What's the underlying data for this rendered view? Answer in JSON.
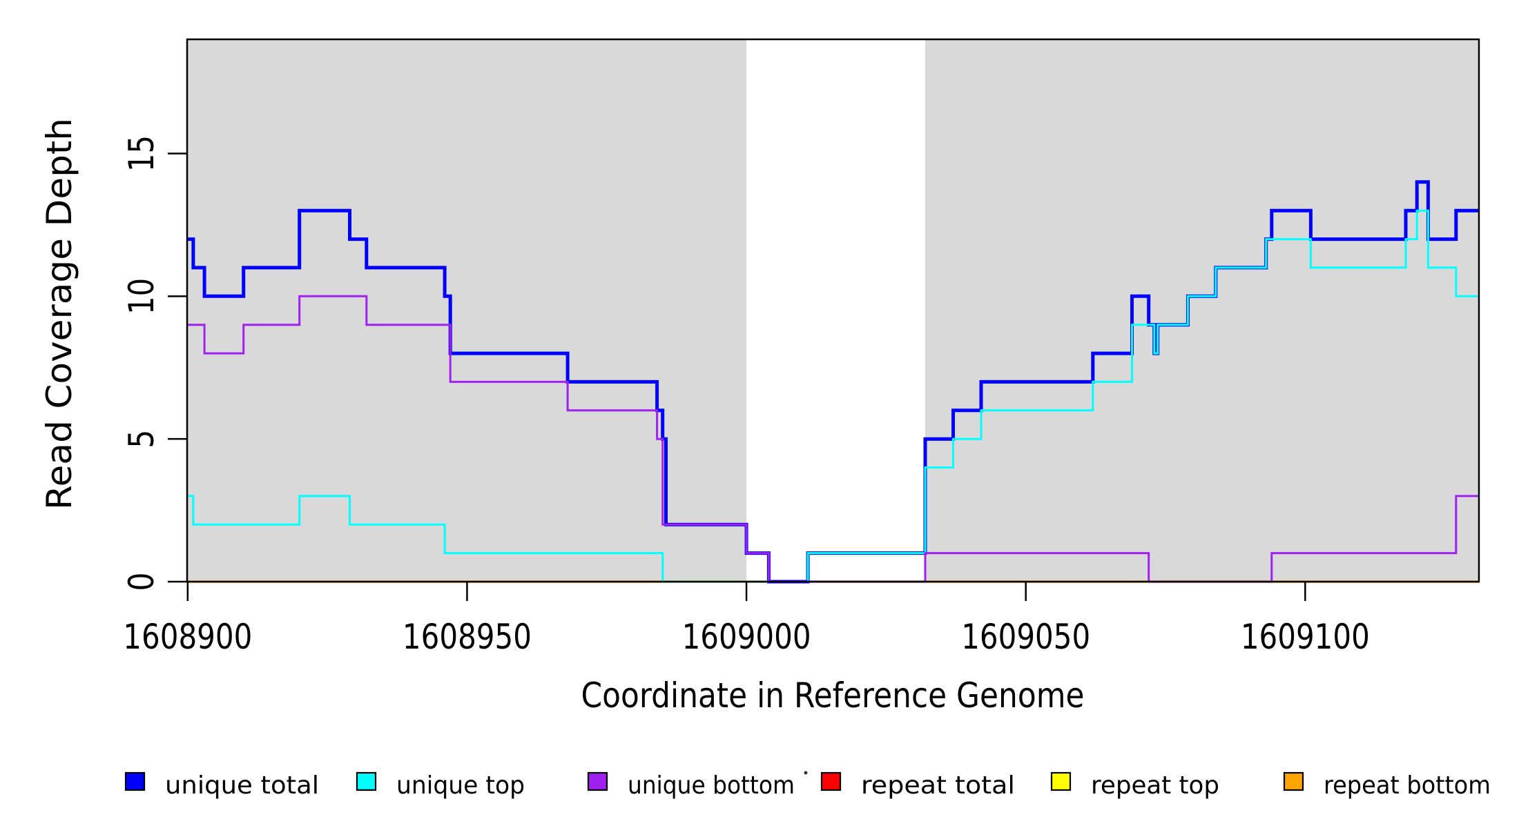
{
  "chart_data": {
    "type": "line",
    "subtype": "step-coverage-plot",
    "title": "",
    "xlabel": "Coordinate in Reference Genome",
    "ylabel": "Read Coverage Depth",
    "xlim": [
      1608899.9,
      1609131.1
    ],
    "ylim": [
      0,
      19
    ],
    "grid": false,
    "xticks": [
      1608900,
      1608950,
      1609000,
      1609050,
      1609100
    ],
    "xtick_labels": [
      "1608900",
      "1608950",
      "1609000",
      "1609050",
      "1609100"
    ],
    "yticks": [
      0,
      5,
      10,
      15
    ],
    "ytick_labels": [
      "0",
      "5",
      "10",
      "15"
    ],
    "shaded_regions": {
      "color": "#D9D9D9",
      "regions": [
        {
          "x0": 1608899.9,
          "x1": 1609000
        },
        {
          "x0": 1609032,
          "x1": 1609131.1
        }
      ]
    },
    "series": [
      {
        "name": "unique total",
        "color": "#0000FF",
        "line_width": 5,
        "draw_order": 4,
        "segments": [
          [
            1608899.9,
            1608901,
            12
          ],
          [
            1608901,
            1608903,
            11
          ],
          [
            1608903,
            1608910,
            10
          ],
          [
            1608910,
            1608920,
            11
          ],
          [
            1608920,
            1608929,
            13
          ],
          [
            1608929,
            1608932,
            12
          ],
          [
            1608932,
            1608946,
            11
          ],
          [
            1608946,
            1608947,
            10
          ],
          [
            1608947,
            1608968,
            8
          ],
          [
            1608968,
            1608984,
            7
          ],
          [
            1608984,
            1608985,
            6
          ],
          [
            1608985,
            1608985.6,
            5
          ],
          [
            1608985.6,
            1609000,
            2
          ],
          [
            1609000,
            1609004,
            1
          ],
          [
            1609004,
            1609011,
            0
          ],
          [
            1609011,
            1609032,
            1
          ],
          [
            1609032,
            1609037,
            5
          ],
          [
            1609037,
            1609042,
            6
          ],
          [
            1609042,
            1609062,
            7
          ],
          [
            1609062,
            1609069,
            8
          ],
          [
            1609069,
            1609072,
            10
          ],
          [
            1609072,
            1609073,
            9
          ],
          [
            1609073,
            1609073.6,
            8
          ],
          [
            1609073.6,
            1609079,
            9
          ],
          [
            1609079,
            1609084,
            10
          ],
          [
            1609084,
            1609093,
            11
          ],
          [
            1609093,
            1609094,
            12
          ],
          [
            1609094,
            1609101,
            13
          ],
          [
            1609101,
            1609118,
            12
          ],
          [
            1609118,
            1609120,
            13
          ],
          [
            1609120,
            1609122,
            14
          ],
          [
            1609122,
            1609127,
            12
          ],
          [
            1609127,
            1609131.1,
            13
          ]
        ]
      },
      {
        "name": "unique top",
        "color": "#00FFFF",
        "line_width": 3,
        "draw_order": 5,
        "segments": [
          [
            1608899.9,
            1608901,
            3
          ],
          [
            1608901,
            1608920,
            2
          ],
          [
            1608920,
            1608929,
            3
          ],
          [
            1608929,
            1608946,
            2
          ],
          [
            1608946,
            1608985,
            1
          ],
          [
            1608985,
            1609011,
            0
          ],
          [
            1609011,
            1609032,
            1
          ],
          [
            1609032,
            1609037,
            4
          ],
          [
            1609037,
            1609042,
            5
          ],
          [
            1609042,
            1609062,
            6
          ],
          [
            1609062,
            1609069,
            7
          ],
          [
            1609069,
            1609073,
            9
          ],
          [
            1609073,
            1609073.6,
            8
          ],
          [
            1609073.6,
            1609079,
            9
          ],
          [
            1609079,
            1609084,
            10
          ],
          [
            1609084,
            1609093,
            11
          ],
          [
            1609093,
            1609101,
            12
          ],
          [
            1609101,
            1609118,
            11
          ],
          [
            1609118,
            1609120,
            12
          ],
          [
            1609120,
            1609122,
            13
          ],
          [
            1609122,
            1609127,
            11
          ],
          [
            1609127,
            1609131.1,
            10
          ]
        ]
      },
      {
        "name": "unique bottom",
        "color": "#A020F0",
        "line_width": 3,
        "draw_order": 6,
        "segments": [
          [
            1608899.9,
            1608903,
            9
          ],
          [
            1608903,
            1608910,
            8
          ],
          [
            1608910,
            1608920,
            9
          ],
          [
            1608920,
            1608932,
            10
          ],
          [
            1608932,
            1608947,
            9
          ],
          [
            1608947,
            1608968,
            7
          ],
          [
            1608968,
            1608984,
            6
          ],
          [
            1608984,
            1608985,
            5
          ],
          [
            1608985,
            1609000,
            2
          ],
          [
            1609000,
            1609004,
            1
          ],
          [
            1609004,
            1609032,
            0
          ],
          [
            1609032,
            1609072,
            1
          ],
          [
            1609072,
            1609094,
            0
          ],
          [
            1609094,
            1609127,
            1
          ],
          [
            1609127,
            1609131.1,
            3
          ]
        ]
      },
      {
        "name": "repeat total",
        "color": "#FF0000",
        "line_width": 2.5,
        "draw_order": 1,
        "segments": [
          [
            1608899.9,
            1609131.1,
            0
          ]
        ]
      },
      {
        "name": "repeat top",
        "color": "#FFFF00",
        "line_width": 2.5,
        "draw_order": 2,
        "segments": [
          [
            1608899.9,
            1609131.1,
            0
          ]
        ]
      },
      {
        "name": "repeat bottom",
        "color": "#FFA500",
        "line_width": 3.5,
        "draw_order": 3,
        "segments": [
          [
            1608899.9,
            1609131.1,
            0
          ]
        ]
      }
    ],
    "legend": {
      "position": "bottom",
      "items": [
        {
          "label": "unique total",
          "color": "#0000FF"
        },
        {
          "label": "unique top",
          "color": "#00FFFF"
        },
        {
          "label": "unique bottom",
          "color": "#A020F0"
        },
        {
          "label": "repeat total",
          "color": "#FF0000"
        },
        {
          "label": "repeat top",
          "color": "#FFFF00"
        },
        {
          "label": "repeat bottom",
          "color": "#FFA500"
        }
      ]
    },
    "artifact_dot": {
      "x": 1167,
      "y": 1120
    }
  }
}
